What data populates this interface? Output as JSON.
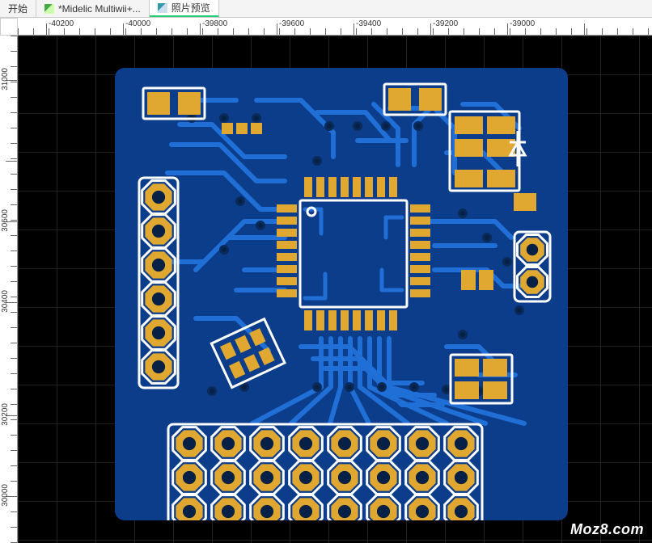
{
  "tabs": [
    {
      "label": "开始",
      "icon": null,
      "active": false
    },
    {
      "label": "*Midelic Multiwii+...",
      "icon": "sheet",
      "active": false
    },
    {
      "label": "照片预览",
      "icon": "photo",
      "active": true
    }
  ],
  "ruler_h": {
    "labels": [
      "-40200",
      "-40000",
      "-39800",
      "-39600",
      "-39400",
      "-39200",
      "-39000"
    ],
    "positions": [
      35,
      130,
      225,
      320,
      415,
      510,
      605
    ],
    "major_positions": [
      35,
      130,
      225,
      320,
      415,
      510,
      605,
      700
    ],
    "minor_step": 19
  },
  "ruler_v": {
    "labels": [
      "31000",
      "30600",
      "30400",
      "30200",
      "30000"
    ],
    "positions": [
      55,
      230,
      330,
      470,
      570
    ],
    "major_positions": [
      55,
      155,
      230,
      330,
      470,
      570
    ],
    "minor_step": 19
  },
  "pcb": {
    "board_color": "#0c3d8a",
    "copper_color": "#e0a830",
    "silkscreen_color": "#ffffff",
    "trace_color": "#1f6fd6",
    "hole_color": "#0a2a5a",
    "drill_color": "#072046",
    "outline_corner_radius": 12
  },
  "watermark": "Moz8.com"
}
